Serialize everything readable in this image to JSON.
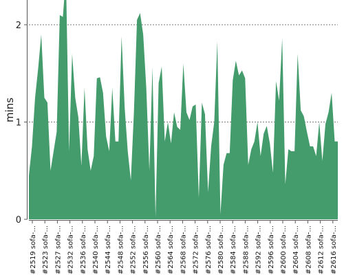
{
  "chart_data": {
    "type": "area",
    "ylabel": "mins",
    "xlabel": "",
    "title": "",
    "ylim": [
      0,
      2.2
    ],
    "yticks": [
      0,
      1,
      2
    ],
    "grid": "horizontal-dashed",
    "color": "#449b6c",
    "tick_labels": [
      "#2519 sofa-...",
      "#2523 sofa-...",
      "#2527 sofa-...",
      "#2532 sofa-...",
      "#2536 sofa-...",
      "#2540 sofa-...",
      "#2544 sofa-...",
      "#2548 sofa-...",
      "#2552 sofa-...",
      "#2556 sofa-...",
      "#2560 sofa-...",
      "#2564 sofa-...",
      "#2568 sofa-...",
      "#2572 sofa-...",
      "#2576 sofa-...",
      "#2580 sofa-...",
      "#2584 sofa-...",
      "#2588 sofa-...",
      "#2592 sofa-...",
      "#2596 sofa-...",
      "#2600 sofa-...",
      "#2604 sofa-...",
      "#2608 sofa-...",
      "#2612 sofa-...",
      "#2616 sofa-..."
    ],
    "values": [
      0.45,
      0.75,
      1.25,
      1.55,
      1.9,
      1.25,
      1.2,
      0.5,
      0.7,
      0.9,
      2.1,
      2.08,
      2.5,
      0.7,
      1.7,
      1.25,
      1.05,
      0.55,
      1.35,
      0.72,
      0.5,
      0.65,
      1.45,
      1.46,
      1.3,
      0.85,
      0.7,
      1.35,
      0.8,
      0.8,
      1.88,
      1.15,
      0.7,
      0.4,
      1.1,
      2.05,
      2.12,
      1.9,
      1.35,
      0.5,
      1.56,
      0.02,
      1.4,
      1.57,
      0.8,
      1.0,
      0.78,
      1.1,
      0.95,
      0.92,
      1.6,
      1.1,
      1.02,
      1.16,
      1.18,
      0.22,
      1.2,
      1.08,
      0.28,
      0.75,
      1.0,
      1.83,
      0.05,
      0.56,
      0.68,
      0.68,
      1.43,
      1.63,
      1.48,
      1.53,
      1.45,
      0.56,
      0.72,
      0.8,
      1.0,
      0.65,
      0.88,
      0.96,
      0.78,
      0.48,
      1.42,
      1.22,
      1.86,
      0.36,
      0.72,
      0.7,
      0.7,
      1.7,
      1.12,
      1.06,
      0.9,
      0.75,
      0.75,
      0.65,
      1.0,
      0.6,
      0.98,
      1.1,
      1.3,
      0.8,
      0.8
    ]
  }
}
